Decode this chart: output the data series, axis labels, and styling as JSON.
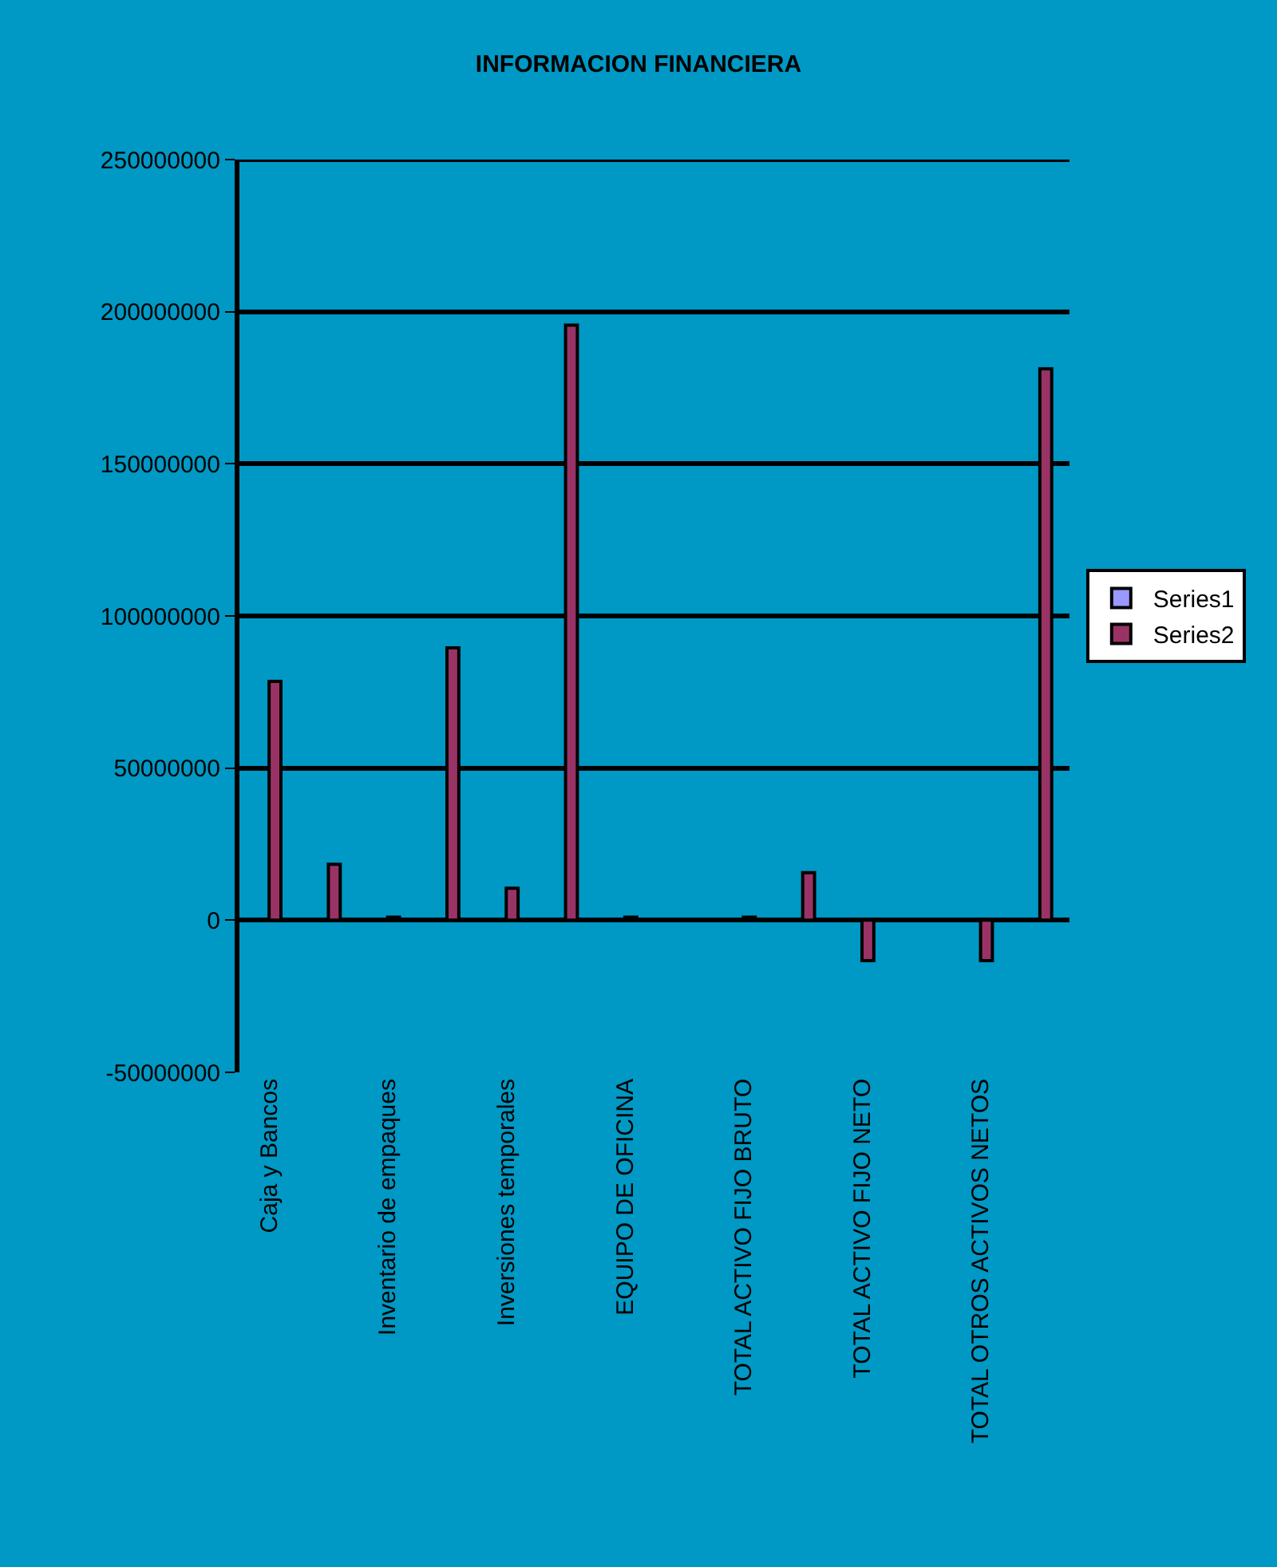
{
  "chart_data": {
    "type": "bar",
    "title": "INFORMACION FINANCIERA",
    "categories": [
      "Caja y Bancos",
      null,
      "Inventario de empaques",
      null,
      "Inversiones temporales",
      null,
      "EQUIPO DE OFICINA",
      null,
      "TOTAL ACTIVO FIJO BRUTO",
      null,
      "TOTAL ACTIVO FIJO NETO",
      null,
      "TOTAL OTROS ACTIVOS NETOS",
      null
    ],
    "series": [
      {
        "name": "Series1",
        "color": "#9999ff",
        "values": [
          null,
          null,
          null,
          null,
          null,
          null,
          null,
          null,
          null,
          null,
          null,
          null,
          null,
          null
        ]
      },
      {
        "name": "Series2",
        "color": "#993366",
        "values": [
          78500000,
          18400000,
          1000000,
          89500000,
          10500000,
          195600000,
          1000000,
          null,
          1000000,
          15600000,
          -13300000,
          300000,
          -13300000,
          181200000
        ]
      }
    ],
    "ylim": [
      -50000000,
      250000000
    ],
    "yticks": [
      -50000000,
      0,
      50000000,
      100000000,
      150000000,
      200000000,
      250000000
    ],
    "grid": "y",
    "legend": "right"
  }
}
